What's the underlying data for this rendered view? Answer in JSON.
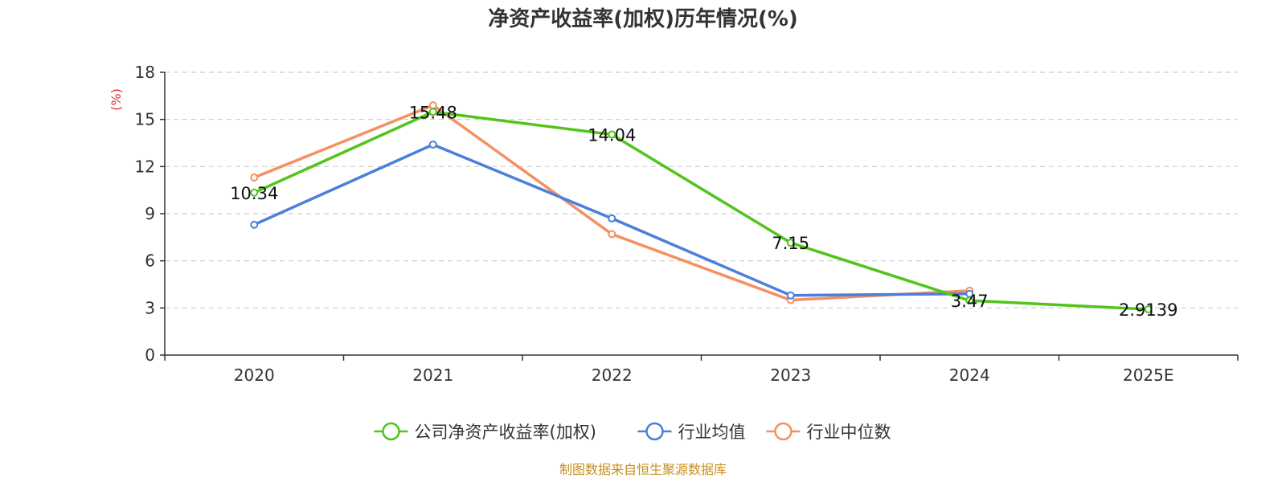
{
  "chart_data": {
    "type": "line",
    "title": "净资产收益率(加权)历年情况(%)",
    "ylabel": "(%)",
    "xlabel": "",
    "categories": [
      "2020",
      "2021",
      "2022",
      "2023",
      "2024",
      "2025E"
    ],
    "ylim": [
      0,
      18
    ],
    "yticks": [
      0,
      3,
      6,
      9,
      12,
      15,
      18
    ],
    "grid": true,
    "legend_position": "bottom-center",
    "series": [
      {
        "name": "公司净资产收益率(加权)",
        "color": "#52c41a",
        "values": [
          10.34,
          15.48,
          14.04,
          7.15,
          3.47,
          2.9139
        ],
        "labels": [
          "10.34",
          "15.48",
          "14.04",
          "7.15",
          "3.47",
          "2.9139"
        ]
      },
      {
        "name": "行业均值",
        "color": "#4a7fdc",
        "values": [
          8.3,
          13.4,
          8.7,
          3.8,
          3.9,
          null
        ]
      },
      {
        "name": "行业中位数",
        "color": "#f59062",
        "values": [
          11.3,
          15.9,
          7.7,
          3.5,
          4.1,
          null
        ]
      }
    ],
    "source": "制图数据来自恒生聚源数据库"
  }
}
